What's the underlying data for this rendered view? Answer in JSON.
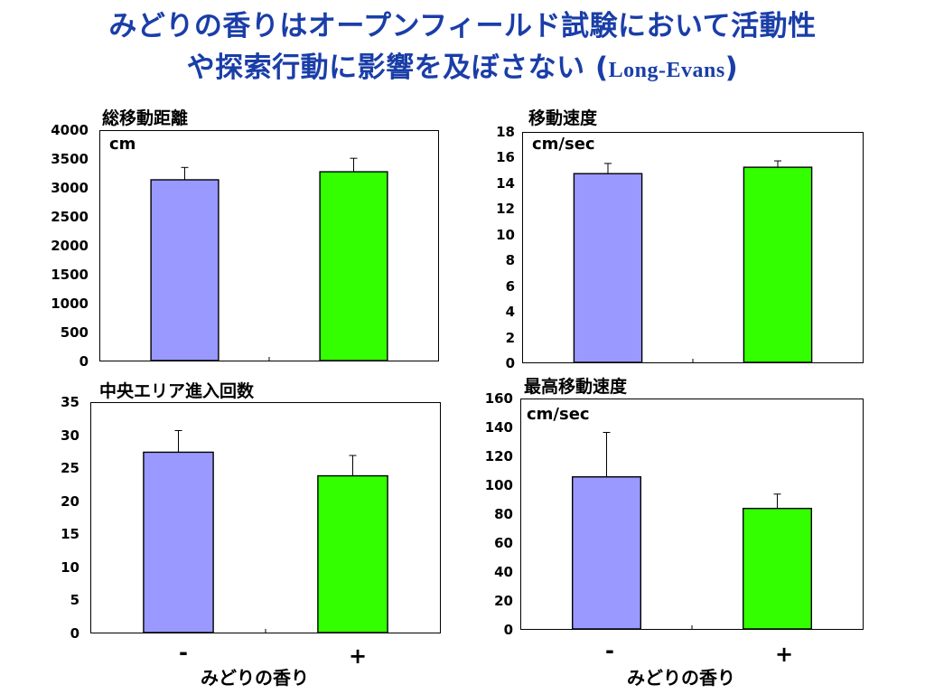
{
  "slide": {
    "title_line1": "みどりの香りはオープンフィールド試験において活動性",
    "title_line2": "や探索行動に影響を及ぼさない (",
    "title_strain": "Long-Evans",
    "title_close": ")"
  },
  "colors": {
    "title": "#1a3ea8",
    "bar_minus": "#9999ff",
    "bar_plus": "#33ff00"
  },
  "groups": [
    "-",
    "+"
  ],
  "xlabel": "みどりの香り",
  "chart_data": [
    {
      "type": "bar",
      "title": "総移動距離",
      "unit": "cm",
      "categories": [
        "-",
        "+"
      ],
      "values": [
        3150,
        3290
      ],
      "errors": [
        215,
        235
      ],
      "ylim": [
        0,
        4000
      ],
      "yticks": [
        0,
        500,
        1000,
        1500,
        2000,
        2500,
        3000,
        3500,
        4000
      ],
      "bar_colors": [
        "#9999ff",
        "#33ff00"
      ]
    },
    {
      "type": "bar",
      "title": "移動速度",
      "unit": "cm/sec",
      "categories": [
        "-",
        "+"
      ],
      "values": [
        14.8,
        15.3
      ],
      "errors": [
        0.8,
        0.5
      ],
      "ylim": [
        0,
        18
      ],
      "yticks": [
        0,
        2,
        4,
        6,
        8,
        10,
        12,
        14,
        16,
        18
      ],
      "bar_colors": [
        "#9999ff",
        "#33ff00"
      ]
    },
    {
      "type": "bar",
      "title": "中央エリア進入回数",
      "unit": "",
      "categories": [
        "-",
        "+"
      ],
      "values": [
        27.5,
        23.9
      ],
      "errors": [
        3.3,
        3.1
      ],
      "ylim": [
        0,
        35
      ],
      "yticks": [
        0,
        5,
        10,
        15,
        20,
        25,
        30,
        35
      ],
      "bar_colors": [
        "#9999ff",
        "#33ff00"
      ]
    },
    {
      "type": "bar",
      "title": "最高移動速度",
      "unit": "cm/sec",
      "categories": [
        "-",
        "+"
      ],
      "values": [
        106,
        84
      ],
      "errors": [
        31,
        10
      ],
      "ylim": [
        0,
        160
      ],
      "yticks": [
        0,
        20,
        40,
        60,
        80,
        100,
        120,
        140,
        160
      ],
      "bar_colors": [
        "#9999ff",
        "#33ff00"
      ]
    }
  ]
}
